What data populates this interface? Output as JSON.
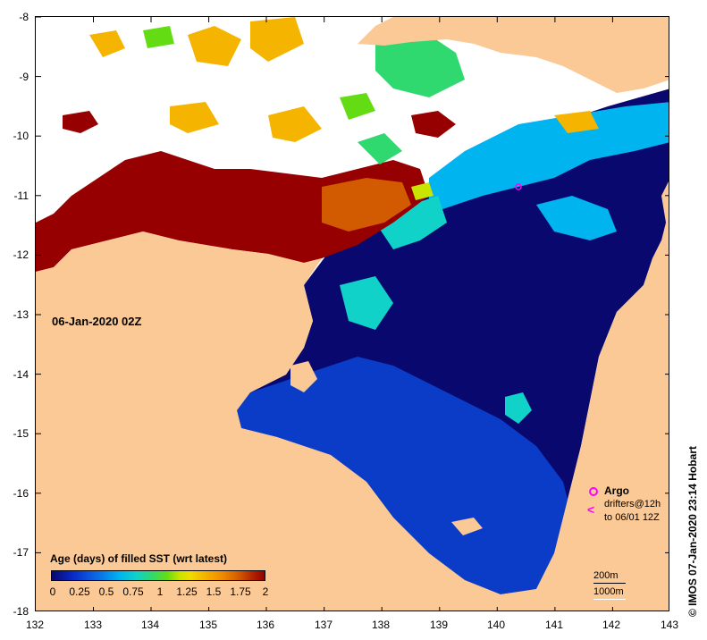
{
  "map": {
    "date_label": "06-Jan-2020 02Z",
    "legend_title": "Age (days) of filled SST (wrt latest)",
    "colorbar_ticks": [
      "0",
      "0.25",
      "0.5",
      "0.75",
      "1",
      "1.25",
      "1.5",
      "1.75",
      "2"
    ],
    "colorbar_range": [
      0,
      2
    ],
    "lat_ticks": [
      "-8",
      "-9",
      "-10",
      "-11",
      "-12",
      "-13",
      "-14",
      "-15",
      "-16",
      "-17",
      "-18"
    ],
    "lon_ticks": [
      "132",
      "133",
      "134",
      "135",
      "136",
      "137",
      "138",
      "139",
      "140",
      "141",
      "142",
      "143"
    ],
    "lat_range": [
      -18,
      -8
    ],
    "lon_range": [
      132,
      143
    ],
    "legend": {
      "argo": "Argo",
      "drifters": "drifters@12h",
      "drifters_to": "to 06/01 12Z"
    },
    "scale": {
      "line1": "200m",
      "line2": "1000m"
    },
    "credit": "© IMOS 07-Jan-2020 23:14 Hobart"
  },
  "colors": {
    "land": "#fbc995",
    "no_data": "#ffffff",
    "age_0": "#08086e",
    "age_0_2": "#0a3cc8",
    "age_0_5": "#00b4f0",
    "age_1": "#10d2c8",
    "age_1_2": "#30d870",
    "age_1_5": "#f5b400",
    "age_1_8": "#d25a00",
    "age_2": "#960000",
    "argo": "#ff00ff"
  }
}
